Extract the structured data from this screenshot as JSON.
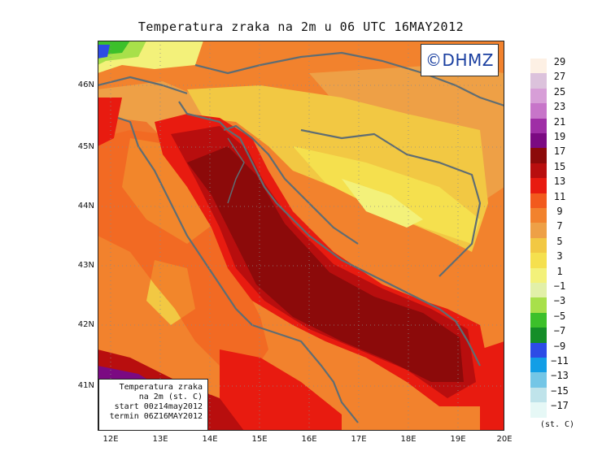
{
  "title": "Temperatura zraka na 2m u 06 UTC 16MAY2012",
  "logo": "©DHMZ",
  "info": {
    "line1": "Temperatura zraka",
    "line2": "na 2m (st. C)",
    "line3": "start 00z14may2012",
    "line4": "termin 06Z16MAY2012"
  },
  "axes": {
    "lat_labels": [
      "46N",
      "45N",
      "44N",
      "43N",
      "42N",
      "41N"
    ],
    "lon_labels": [
      "12E",
      "13E",
      "14E",
      "15E",
      "16E",
      "17E",
      "18E",
      "19E",
      "20E"
    ]
  },
  "legend": {
    "unit": "(st. C)",
    "levels": [
      "29",
      "27",
      "25",
      "23",
      "21",
      "19",
      "17",
      "15",
      "13",
      "11",
      "9",
      "7",
      "5",
      "3",
      "1",
      "−1",
      "−3",
      "−5",
      "−7",
      "−9",
      "−11",
      "−13",
      "−15",
      "−17"
    ],
    "colors": [
      "#fdf0e4",
      "#dcc2dc",
      "#d79ed7",
      "#c775c9",
      "#9f2ea6",
      "#7b0a82",
      "#8c0a0a",
      "#b80e0e",
      "#e81b10",
      "#f25a1d",
      "#f2822d",
      "#eea046",
      "#f2c843",
      "#f5e04e",
      "#f3f17a",
      "#e2f0a8",
      "#a8e04a",
      "#3cc02a",
      "#148e28",
      "#2d4ce6",
      "#129ee6",
      "#74c6e6",
      "#bfe3ea",
      "#e6f8f6"
    ]
  },
  "colors": {
    "coast": "#5f6d73",
    "hot_sea": "#8c0a0a",
    "inland": "#f2822d"
  }
}
